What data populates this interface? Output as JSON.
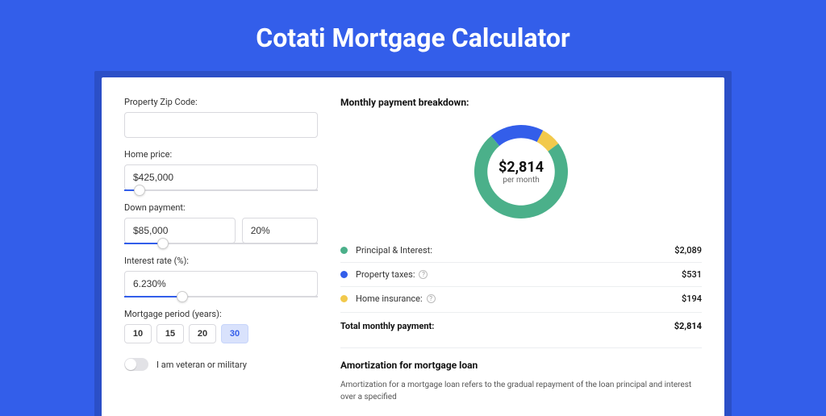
{
  "title": "Cotati Mortgage Calculator",
  "form": {
    "zip": {
      "label": "Property Zip Code:",
      "value": ""
    },
    "price": {
      "label": "Home price:",
      "value": "$425,000",
      "slider_pct": 8
    },
    "down": {
      "label": "Down payment:",
      "value": "$85,000",
      "pct_value": "20%",
      "slider_pct": 20
    },
    "rate": {
      "label": "Interest rate (%):",
      "value": "6.230%",
      "slider_pct": 30
    },
    "period": {
      "label": "Mortgage period (years):",
      "options": [
        "10",
        "15",
        "20",
        "30"
      ],
      "selected": "30"
    },
    "veteran": {
      "label": "I am veteran or military",
      "on": false
    }
  },
  "breakdown": {
    "title": "Monthly payment breakdown:",
    "center_amount": "$2,814",
    "center_sub": "per month",
    "items": [
      {
        "label": "Principal & Interest:",
        "value": "$2,089",
        "color": "#4bb08a",
        "has_help": false,
        "key": "principal-interest"
      },
      {
        "label": "Property taxes:",
        "value": "$531",
        "color": "#335eea",
        "has_help": true,
        "key": "property-taxes"
      },
      {
        "label": "Home insurance:",
        "value": "$194",
        "color": "#f2c94c",
        "has_help": true,
        "key": "home-insurance"
      }
    ],
    "donut": {
      "segments": [
        {
          "color": "#335eea",
          "pct": 18.9
        },
        {
          "color": "#f2c94c",
          "pct": 6.9
        },
        {
          "color": "#4bb08a",
          "pct": 74.2
        }
      ],
      "start_angle_deg": -130,
      "thickness_ratio": 0.28
    },
    "total": {
      "label": "Total monthly payment:",
      "value": "$2,814"
    }
  },
  "amortization": {
    "title": "Amortization for mortgage loan",
    "body": "Amortization for a mortgage loan refers to the gradual repayment of the loan principal and interest over a specified"
  },
  "colors": {
    "page_bg": "#335eea",
    "card_bg": "#ffffff",
    "accent": "#335eea"
  }
}
